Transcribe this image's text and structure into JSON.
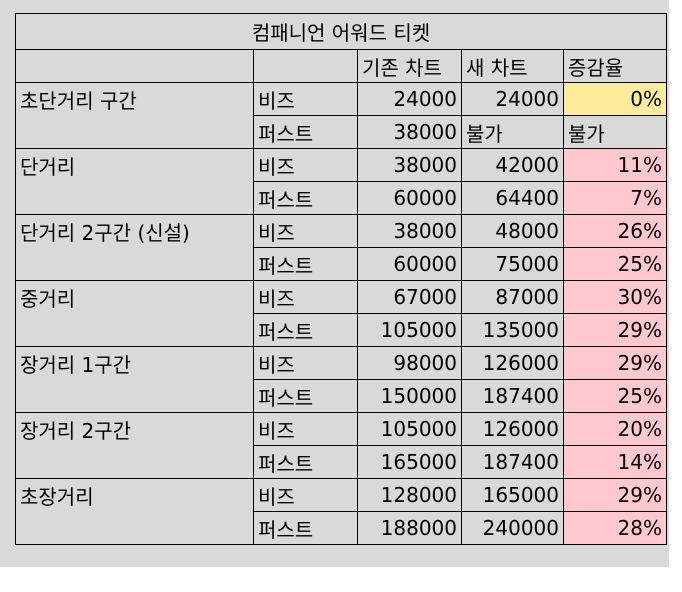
{
  "sheet": {
    "title": "컴패니언 어워드 티켓",
    "headers": {
      "route": "",
      "class": "",
      "old_chart": "기존 차트",
      "new_chart": "새 차트",
      "rate": "증감율"
    },
    "rows": [
      {
        "route": "초단거리 구간",
        "class": "비즈",
        "old": "24000",
        "new": "24000",
        "rate": "0%",
        "rate_style": "yellow"
      },
      {
        "route": "",
        "class": "퍼스트",
        "old": "38000",
        "new": "불가",
        "rate": "불가",
        "rate_style": "plain"
      },
      {
        "route": "단거리",
        "class": "비즈",
        "old": "38000",
        "new": "42000",
        "rate": "11%",
        "rate_style": "red"
      },
      {
        "route": "",
        "class": "퍼스트",
        "old": "60000",
        "new": "64400",
        "rate": "7%",
        "rate_style": "red"
      },
      {
        "route": "단거리 2구간 (신설)",
        "class": "비즈",
        "old": "38000",
        "new": "48000",
        "rate": "26%",
        "rate_style": "red"
      },
      {
        "route": "",
        "class": "퍼스트",
        "old": "60000",
        "new": "75000",
        "rate": "25%",
        "rate_style": "red"
      },
      {
        "route": "중거리",
        "class": "비즈",
        "old": "67000",
        "new": "87000",
        "rate": "30%",
        "rate_style": "red"
      },
      {
        "route": "",
        "class": "퍼스트",
        "old": "105000",
        "new": "135000",
        "rate": "29%",
        "rate_style": "red"
      },
      {
        "route": "장거리 1구간",
        "class": "비즈",
        "old": "98000",
        "new": "126000",
        "rate": "29%",
        "rate_style": "red"
      },
      {
        "route": "",
        "class": "퍼스트",
        "old": "150000",
        "new": "187400",
        "rate": "25%",
        "rate_style": "red"
      },
      {
        "route": "장거리 2구간",
        "class": "비즈",
        "old": "105000",
        "new": "126000",
        "rate": "20%",
        "rate_style": "red"
      },
      {
        "route": "",
        "class": "퍼스트",
        "old": "165000",
        "new": "187400",
        "rate": "14%",
        "rate_style": "red"
      },
      {
        "route": "초장거리",
        "class": "비즈",
        "old": "128000",
        "new": "165000",
        "rate": "29%",
        "rate_style": "red"
      },
      {
        "route": "",
        "class": "퍼스트",
        "old": "188000",
        "new": "240000",
        "rate": "28%",
        "rate_style": "red"
      }
    ],
    "colors": {
      "yellow_fill": "#ffeb9c",
      "yellow_text": "#9c5700",
      "red_fill": "#ffc7ce",
      "red_text": "#9c0006"
    }
  }
}
